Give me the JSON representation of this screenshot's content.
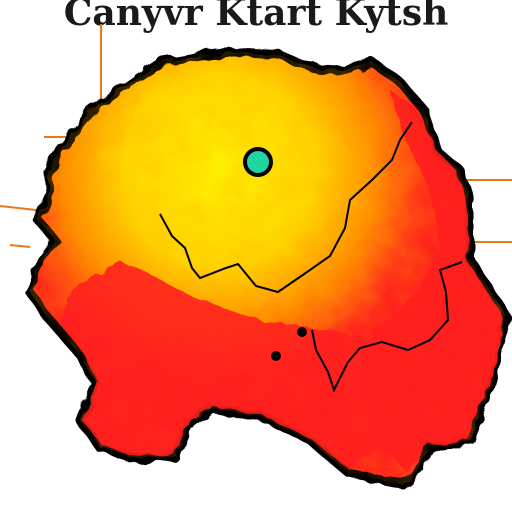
{
  "map": {
    "title": "Canyvr Ktart Kytsh",
    "colors": {
      "low": "#fff200",
      "mid": "#ffc400",
      "high": "#ff8a00",
      "peak": "#ff1e1e",
      "border": "#000000",
      "route": "#e7781b",
      "marker": "#1fd6a0"
    },
    "legend": []
  }
}
